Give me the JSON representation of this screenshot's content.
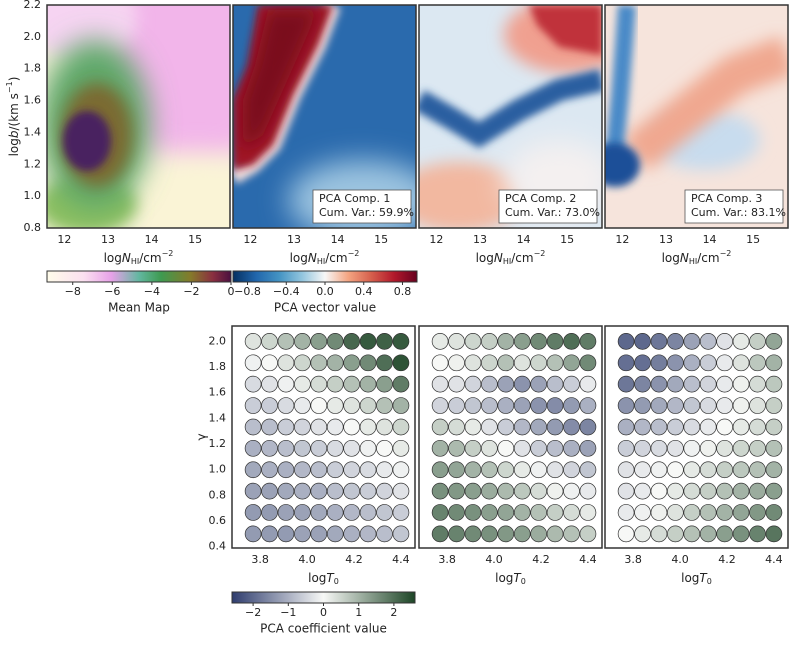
{
  "chart_data": [
    {
      "type": "heatmap",
      "x_label": [
        "log",
        "N",
        "HI",
        "/cm",
        "−2"
      ],
      "y_label": [
        "log",
        "b",
        "/(km s",
        "−1",
        ")"
      ],
      "xlim": [
        11.6,
        15.8
      ],
      "xticks": [
        12,
        13,
        14,
        15
      ],
      "ylim": [
        0.8,
        2.2
      ],
      "yticks": [
        0.8,
        {
          "value": 1.0,
          "label": "1.0"
        },
        1.2,
        1.4,
        1.6,
        1.8,
        {
          "value": 2.0,
          "label": "2.0"
        },
        2.2
      ],
      "colorbar": {
        "label": "Mean Map",
        "lim": [
          -9.3,
          0
        ],
        "ticks": [
          {
            "value": -8,
            "label": "−8"
          },
          {
            "value": -6,
            "label": "−6"
          },
          {
            "value": -4,
            "label": "−4"
          },
          {
            "value": -2,
            "label": "−2"
          },
          0
        ]
      }
    },
    {
      "type": "heatmap",
      "x_label": [
        "log",
        "N",
        "HI",
        "/cm",
        "−2"
      ],
      "xlim": [
        11.6,
        15.8
      ],
      "xticks": [
        12,
        13,
        14,
        15
      ],
      "ylim": [
        0.8,
        2.2
      ],
      "annotation": [
        "PCA Comp. 1",
        "Cum. Var.: 59.9%"
      ],
      "colorbar": {
        "label": "PCA vector value",
        "lim": [
          -0.95,
          0.95
        ],
        "ticks": [
          {
            "value": -0.8,
            "label": "−0.8"
          },
          {
            "value": -0.4,
            "label": "−0.4"
          },
          {
            "value": 0,
            "label": "0.0"
          },
          0.4,
          0.8
        ]
      }
    },
    {
      "type": "heatmap",
      "x_label": [
        "log",
        "N",
        "HI",
        "/cm",
        "−2"
      ],
      "xlim": [
        11.6,
        15.8
      ],
      "xticks": [
        12,
        13,
        14,
        15
      ],
      "ylim": [
        0.8,
        2.2
      ],
      "annotation": [
        "PCA Comp. 2",
        "Cum. Var.: 73.0%"
      ]
    },
    {
      "type": "heatmap",
      "x_label": [
        "log",
        "N",
        "HI",
        "/cm",
        "−2"
      ],
      "xlim": [
        11.6,
        15.8
      ],
      "xticks": [
        12,
        13,
        14,
        15
      ],
      "ylim": [
        0.8,
        2.2
      ],
      "annotation": [
        "PCA Comp. 3",
        "Cum. Var.: 83.1%"
      ]
    },
    {
      "type": "bubble-grid",
      "x_label": [
        "log",
        "T",
        "0"
      ],
      "y_label": "γ",
      "xlim": [
        3.68,
        4.46
      ],
      "xticks": [
        3.8,
        {
          "value": 4.0,
          "label": "4.0"
        },
        4.2,
        4.4
      ],
      "ylim": [
        0.39,
        2.12
      ],
      "yticks": [
        0.4,
        0.6,
        0.8,
        {
          "value": 1.0,
          "label": "1.0"
        },
        1.2,
        1.4,
        1.6,
        1.8,
        {
          "value": 2.0,
          "label": "2.0"
        }
      ],
      "x": [
        3.77,
        3.84,
        3.91,
        3.98,
        4.05,
        4.12,
        4.19,
        4.26,
        4.33,
        4.4
      ],
      "y": [
        2.0,
        1.833,
        1.667,
        1.5,
        1.333,
        1.167,
        1.0,
        0.833,
        0.667,
        0.5
      ],
      "values": [
        [
          0.3,
          0.5,
          0.8,
          1.0,
          1.3,
          1.6,
          2.1,
          2.3,
          2.2,
          2.3
        ],
        [
          -0.1,
          0.0,
          0.3,
          0.5,
          0.8,
          1.0,
          1.3,
          1.6,
          2.0,
          2.4
        ],
        [
          -0.4,
          -0.3,
          -0.1,
          0.2,
          0.4,
          0.6,
          0.8,
          1.0,
          1.3,
          1.8
        ],
        [
          -0.6,
          -0.6,
          -0.4,
          -0.2,
          0.0,
          0.2,
          0.3,
          0.5,
          0.8,
          1.0
        ],
        [
          -0.8,
          -0.8,
          -0.6,
          -0.5,
          -0.3,
          -0.2,
          0.0,
          0.2,
          0.3,
          0.5
        ],
        [
          -1.0,
          -0.9,
          -0.8,
          -0.7,
          -0.6,
          -0.4,
          -0.3,
          -0.1,
          0.0,
          0.2
        ],
        [
          -1.1,
          -1.0,
          -1.0,
          -0.9,
          -0.8,
          -0.6,
          -0.5,
          -0.4,
          -0.2,
          -0.1
        ],
        [
          -1.2,
          -1.2,
          -1.1,
          -1.0,
          -1.0,
          -0.8,
          -0.7,
          -0.6,
          -0.5,
          -0.3
        ],
        [
          -1.3,
          -1.3,
          -1.2,
          -1.2,
          -1.1,
          -1.0,
          -0.9,
          -0.8,
          -0.7,
          -0.6
        ],
        [
          -1.3,
          -1.3,
          -1.3,
          -1.2,
          -1.2,
          -1.1,
          -1.0,
          -0.9,
          -0.8,
          -0.7
        ]
      ],
      "colorbar": {
        "label": "PCA coefficient value",
        "lim": [
          -2.6,
          2.6
        ],
        "colors": [
          "#2f3d6e",
          "#f7f8f6",
          "#1d4526"
        ],
        "ticks": [
          {
            "value": -2,
            "label": "−2"
          },
          {
            "value": -1,
            "label": "−1"
          },
          0,
          1,
          2
        ]
      }
    },
    {
      "type": "bubble-grid",
      "x_label": [
        "log",
        "T",
        "0"
      ],
      "xlim": [
        3.68,
        4.46
      ],
      "xticks": [
        3.8,
        {
          "value": 4.0,
          "label": "4.0"
        },
        4.2,
        4.4
      ],
      "ylim": [
        0.39,
        2.12
      ],
      "x": [
        3.77,
        3.84,
        3.91,
        3.98,
        4.05,
        4.12,
        4.19,
        4.26,
        4.33,
        4.4
      ],
      "y": [
        2.0,
        1.833,
        1.667,
        1.5,
        1.333,
        1.167,
        1.0,
        0.833,
        0.667,
        0.5
      ],
      "values": [
        [
          0.2,
          0.3,
          0.5,
          0.6,
          1.0,
          1.3,
          1.6,
          1.8,
          2.0,
          1.8
        ],
        [
          0.0,
          0.1,
          0.3,
          0.5,
          0.8,
          0.3,
          0.5,
          0.8,
          1.2,
          1.6
        ],
        [
          -0.3,
          -0.3,
          -0.5,
          -0.8,
          -1.2,
          -1.4,
          -1.2,
          -0.8,
          -0.6,
          -0.2
        ],
        [
          -0.5,
          -0.6,
          -0.7,
          -0.8,
          -1.0,
          -1.2,
          -1.4,
          -1.5,
          -1.3,
          -1.0
        ],
        [
          0.6,
          0.4,
          0.2,
          -0.3,
          -0.6,
          -0.9,
          -1.1,
          -1.3,
          -1.5,
          -1.6
        ],
        [
          1.0,
          0.9,
          0.6,
          0.3,
          0.0,
          -0.3,
          -0.6,
          -0.8,
          -1.0,
          -1.2
        ],
        [
          1.3,
          1.2,
          1.0,
          0.8,
          0.5,
          0.2,
          -0.1,
          -0.3,
          -0.5,
          -0.7
        ],
        [
          1.5,
          1.4,
          1.3,
          1.1,
          0.9,
          0.7,
          0.4,
          0.1,
          -0.1,
          -0.2
        ],
        [
          1.7,
          1.6,
          1.5,
          1.3,
          1.2,
          1.0,
          0.8,
          0.6,
          0.4,
          0.2
        ],
        [
          1.8,
          1.7,
          1.6,
          1.5,
          1.4,
          1.3,
          1.1,
          0.9,
          0.8,
          0.6
        ]
      ]
    },
    {
      "type": "bubble-grid",
      "x_label": [
        "log",
        "T",
        "0"
      ],
      "xlim": [
        3.68,
        4.46
      ],
      "xticks": [
        3.8,
        {
          "value": 4.0,
          "label": "4.0"
        },
        4.2,
        4.4
      ],
      "ylim": [
        0.39,
        2.12
      ],
      "x": [
        3.77,
        3.84,
        3.91,
        3.98,
        4.05,
        4.12,
        4.19,
        4.26,
        4.33,
        4.4
      ],
      "y": [
        2.0,
        1.833,
        1.667,
        1.5,
        1.333,
        1.167,
        1.0,
        0.833,
        0.667,
        0.5
      ],
      "values": [
        [
          -2.0,
          -2.0,
          -1.8,
          -1.6,
          -1.2,
          -0.8,
          -0.3,
          0.2,
          0.6,
          1.2
        ],
        [
          -1.9,
          -1.9,
          -1.7,
          -1.4,
          -1.0,
          -0.6,
          -0.2,
          0.3,
          0.7,
          1.0
        ],
        [
          -1.8,
          -1.6,
          -1.4,
          -1.1,
          -0.8,
          -0.5,
          -0.2,
          0.1,
          0.4,
          0.7
        ],
        [
          -1.4,
          -1.3,
          -1.1,
          -0.9,
          -0.7,
          -0.4,
          -0.2,
          0.1,
          0.3,
          0.6
        ],
        [
          -1.0,
          -0.9,
          -0.8,
          -0.6,
          -0.4,
          -0.2,
          0.0,
          0.2,
          0.4,
          0.6
        ],
        [
          -0.6,
          -0.5,
          -0.4,
          -0.3,
          -0.1,
          0.1,
          0.3,
          0.5,
          0.6,
          0.8
        ],
        [
          -0.3,
          -0.2,
          -0.1,
          0.0,
          0.2,
          0.4,
          0.6,
          0.7,
          0.8,
          1.0
        ],
        [
          -0.3,
          -0.2,
          0.0,
          0.2,
          0.4,
          0.6,
          0.8,
          1.0,
          1.1,
          1.3
        ],
        [
          -0.2,
          -0.1,
          0.1,
          0.3,
          0.6,
          0.8,
          1.0,
          1.2,
          1.4,
          1.6
        ],
        [
          0.0,
          0.2,
          0.4,
          0.6,
          0.8,
          1.0,
          1.3,
          1.5,
          1.7,
          1.9
        ]
      ]
    }
  ]
}
